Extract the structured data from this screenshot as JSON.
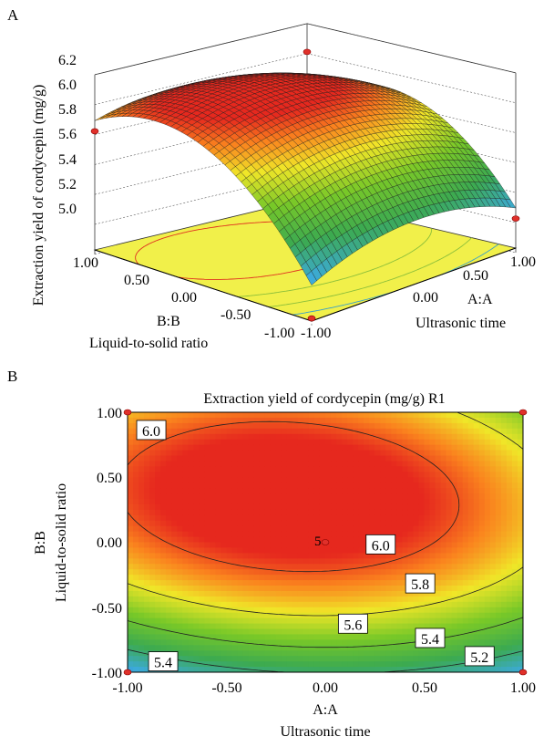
{
  "panels": {
    "a": {
      "label": "A",
      "zlabel": "Extraction yield of cordycepin (mg/g)",
      "xlabel": {
        "factor": "A:A",
        "name": "Ultrasonic time"
      },
      "ylabel": {
        "factor": "B:B",
        "name": "Liquid-to-solid ratio"
      },
      "z_ticks": [
        "6.2",
        "6.0",
        "5.8",
        "5.6",
        "5.4",
        "5.2",
        "5.0"
      ],
      "x_ticks": [
        "-1.00",
        "0.00",
        "0.50",
        "1.00"
      ],
      "y_ticks": [
        "1.00",
        "0.50",
        "0.00",
        "-0.50",
        "-1.00"
      ]
    },
    "b": {
      "label": "B",
      "title": "Extraction yield of cordycepin (mg/g) R1",
      "xlabel": {
        "factor": "A:A",
        "name": "Ultrasonic time"
      },
      "ylabel": {
        "factor": "B:B",
        "name": "Liquid-to-solid ratio"
      },
      "x_ticks": [
        "-1.00",
        "-0.50",
        "0.00",
        "0.50",
        "1.00"
      ],
      "y_ticks": [
        "1.00",
        "0.50",
        "0.00",
        "-0.50",
        "-1.00"
      ],
      "contour_labels": [
        {
          "text": "6.0",
          "x": -0.88,
          "y": 0.86
        },
        {
          "text": "6.0",
          "x": 0.28,
          "y": -0.02
        },
        {
          "text": "5.8",
          "x": 0.48,
          "y": -0.32
        },
        {
          "text": "5.6",
          "x": 0.14,
          "y": -0.63
        },
        {
          "text": "5.4",
          "x": 0.53,
          "y": -0.74
        },
        {
          "text": "5.2",
          "x": 0.78,
          "y": -0.88
        },
        {
          "text": "5.4",
          "x": -0.82,
          "y": -0.92
        }
      ],
      "center_point_label": "5"
    }
  },
  "chart_data": [
    {
      "type": "surface",
      "title": "",
      "xlabel": "A:A Ultrasonic time",
      "ylabel": "B:B Liquid-to-solid ratio",
      "zlabel": "Extraction yield of cordycepin (mg/g)",
      "xlim": [
        -1,
        1
      ],
      "ylim": [
        -1,
        1
      ],
      "zlim": [
        5.0,
        6.2
      ],
      "design_points": [
        {
          "x": -1,
          "y": 1,
          "z": 5.8
        },
        {
          "x": 1,
          "y": 1,
          "z": 6.0
        },
        {
          "x": 1,
          "y": -1,
          "z": 5.17
        },
        {
          "x": -1,
          "y": -1,
          "z": 4.98
        }
      ]
    },
    {
      "type": "heatmap",
      "title": "Extraction yield of cordycepin (mg/g) R1",
      "xlabel": "A:A Ultrasonic time",
      "ylabel": "B:B Liquid-to-solid ratio",
      "xlim": [
        -1,
        1
      ],
      "ylim": [
        -1,
        1
      ],
      "contour_levels": [
        5.2,
        5.4,
        5.6,
        5.8,
        6.0
      ],
      "design_points": [
        {
          "x": -1,
          "y": 1
        },
        {
          "x": 1,
          "y": 1
        },
        {
          "x": 0,
          "y": 0
        },
        {
          "x": -1,
          "y": -1
        },
        {
          "x": 1,
          "y": -1
        }
      ]
    }
  ]
}
